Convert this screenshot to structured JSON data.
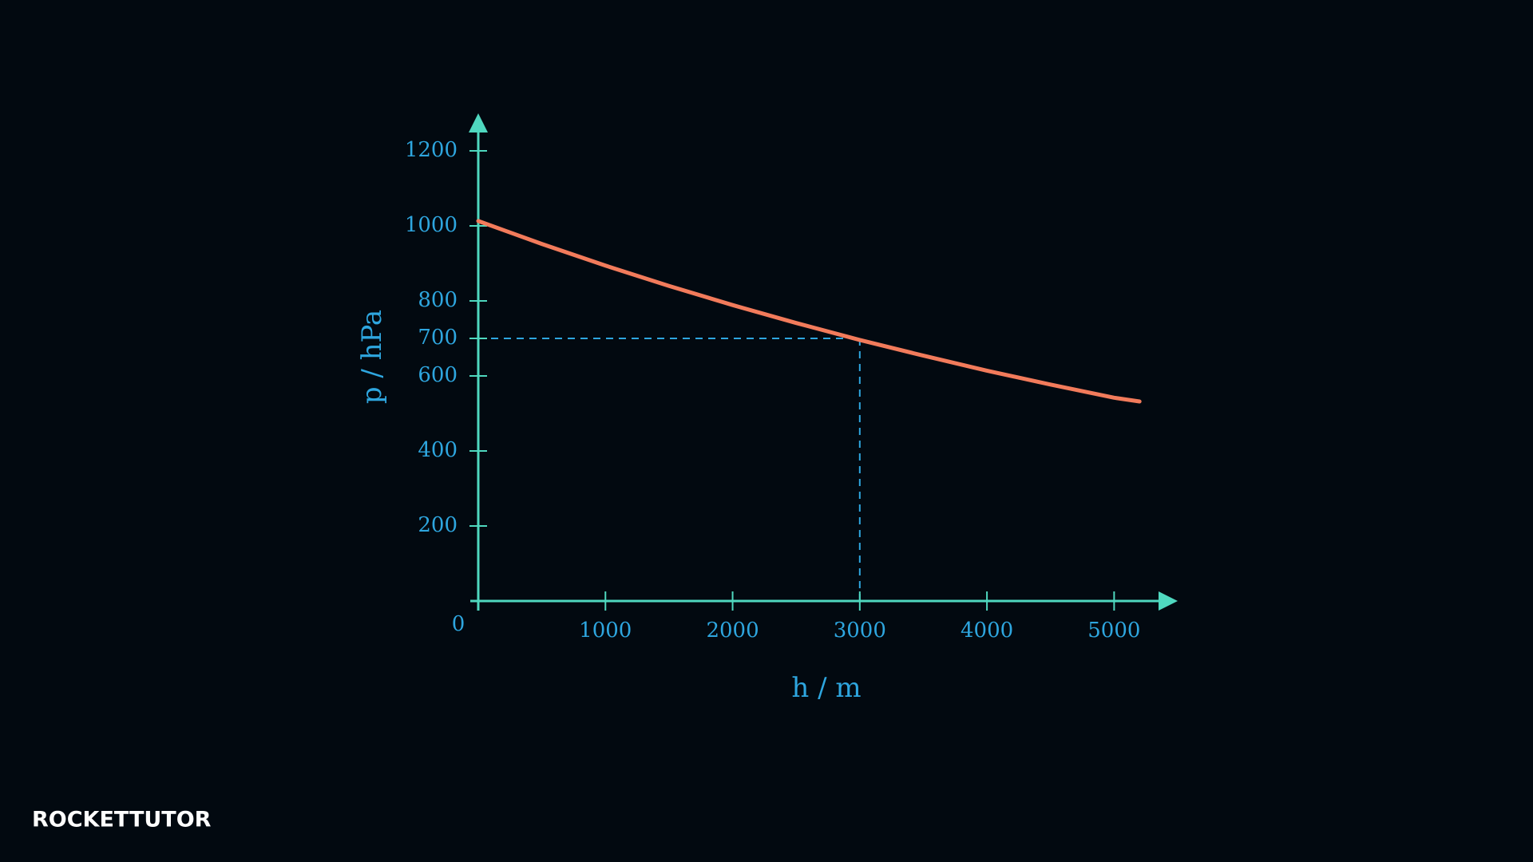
{
  "chart_data": {
    "type": "line",
    "x_label": "h / m",
    "y_label": "p / hPa",
    "x": [
      0,
      500,
      1000,
      1500,
      2000,
      2500,
      3000,
      3500,
      4000,
      4500,
      5000,
      5200
    ],
    "values": [
      1013,
      952,
      894,
      840,
      789,
      741,
      696,
      654,
      614,
      577,
      542,
      532
    ],
    "color": "#f27b5b",
    "xlim": [
      0,
      5500
    ],
    "ylim": [
      0,
      1300
    ],
    "xticks": [
      0,
      1000,
      2000,
      3000,
      4000,
      5000
    ],
    "yticks": [
      200,
      400,
      600,
      700,
      800,
      1000,
      1200
    ],
    "guide": {
      "x": 3000,
      "y": 700
    },
    "axis_color": "#4fd8bf",
    "label_color": "#2ea6df"
  },
  "logo": "ROCKETTUTOR"
}
